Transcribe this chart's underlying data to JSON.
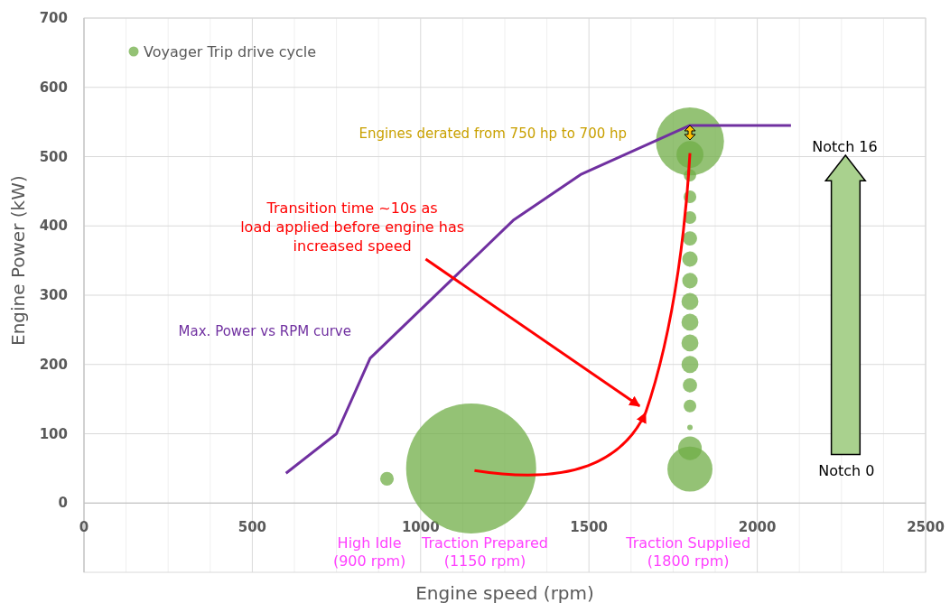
{
  "chart_data": {
    "type": "bubble",
    "xlabel": "Engine speed (rpm)",
    "ylabel": "Engine Power (kW)",
    "xlim": [
      0,
      2500
    ],
    "xticks": [
      0,
      {
        "value": 125,
        "label": null
      },
      {
        "value": 250,
        "label": null
      },
      {
        "value": 375,
        "label": null
      },
      500,
      {
        "value": 625,
        "label": null
      },
      {
        "value": 750,
        "label": null
      },
      {
        "value": 875,
        "label": null
      },
      1000,
      {
        "value": 1125,
        "label": null
      },
      {
        "value": 1250,
        "label": null
      },
      {
        "value": 1375,
        "label": null
      },
      1500,
      {
        "value": 1625,
        "label": null
      },
      {
        "value": 1750,
        "label": null
      },
      {
        "value": 1875,
        "label": null
      },
      2000,
      {
        "value": 2125,
        "label": null
      },
      {
        "value": 2250,
        "label": null
      },
      {
        "value": 2375,
        "label": null
      },
      2500
    ],
    "ylim": [
      -100,
      700
    ],
    "yticks": [
      0,
      100,
      200,
      300,
      400,
      500,
      600,
      700
    ],
    "grid": true,
    "legend": "top left",
    "series": [
      {
        "name": "Voyager Trip drive cycle",
        "color": "#70ad47",
        "x": [
          900,
          1150,
          1800,
          1800,
          1800,
          1800,
          1800,
          1800,
          1800,
          1800,
          1800,
          1800,
          1800,
          1800,
          1800,
          1800,
          1800,
          1800,
          1800
        ],
        "values": [
          35,
          50,
          522,
          503,
          473,
          442,
          412,
          382,
          352,
          321,
          291,
          261,
          231,
          200,
          170,
          140,
          109,
          79,
          49
        ],
        "sizes": [
          0.011,
          1,
          0.274,
          0.043,
          0.009,
          0.0095,
          0.0095,
          0.012,
          0.014,
          0.014,
          0.017,
          0.017,
          0.017,
          0.017,
          0.012,
          0.0095,
          0.0017,
          0.033,
          0.12
        ]
      },
      {
        "name": "Max. Power vs RPM curve",
        "type": "line",
        "color": "#7030a0",
        "x": [
          600,
          750,
          850,
          1275,
          1475,
          1800,
          2100
        ],
        "values": [
          43,
          100,
          209,
          408,
          474,
          545,
          545
        ]
      }
    ],
    "annotations": [
      "Engines derated from 750 hp to 700 hp",
      "Transition time ~10s as\nload applied before engine has\nincreased speed",
      "High Idle\n(900 rpm)",
      "Traction Prepared\n(1150 rpm)",
      "Traction Supplied\n(1800 rpm)",
      "Notch 16",
      "Notch 0"
    ]
  }
}
